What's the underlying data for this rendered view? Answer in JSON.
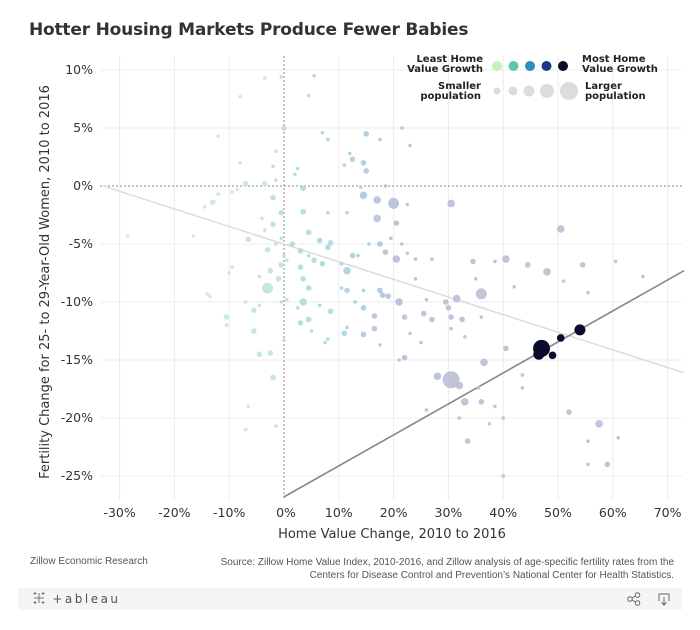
{
  "title": "Hotter Housing Markets Produce Fewer Babies",
  "footer": {
    "left": "Zillow Economic Research",
    "source_line1": "Source: Zillow Home Value Index, 2010-2016, and Zillow analysis of age-specific fertility rates from the",
    "source_line2": "Centers for Disease Control and Prevention’s National Center for Health Statistics."
  },
  "toolbar": {
    "logo": "+ableau",
    "share_icon": "share-icon",
    "download_icon": "download-icon"
  },
  "legend": {
    "color_low_label_1": "Least Home",
    "color_low_label_2": "Value Growth",
    "color_high_label_1": "Most Home",
    "color_high_label_2": "Value Growth",
    "size_low_label_1": "Smaller",
    "size_low_label_2": "population",
    "size_high_label_1": "Larger",
    "size_high_label_2": "population",
    "colors": [
      "#c7f0b4",
      "#5cc9a7",
      "#2c8fbf",
      "#1d3a8a",
      "#0b0b2b"
    ],
    "sizes": [
      1,
      2,
      3,
      4,
      5
    ]
  },
  "chart_data": {
    "type": "scatter",
    "title": "Hotter Housing Markets Produce Fewer Babies",
    "xlabel": "Home Value Change, 2010 to 2016",
    "ylabel": "Fertility Change for 25- to 29-Year-Old Women, 2010 to 2016",
    "xlim": [
      -0.33,
      0.73
    ],
    "ylim": [
      -0.27,
      0.11
    ],
    "x_ticks": [
      -0.3,
      -0.2,
      -0.1,
      0,
      0.1,
      0.2,
      0.3,
      0.4,
      0.5,
      0.6,
      0.7
    ],
    "x_tick_labels": [
      "-30%",
      "-20%",
      "-10%",
      "0%",
      "10%",
      "20%",
      "30%",
      "40%",
      "50%",
      "60%",
      "70%"
    ],
    "y_ticks": [
      0.1,
      0.05,
      0,
      -0.05,
      -0.1,
      -0.15,
      -0.2,
      -0.25
    ],
    "y_tick_labels": [
      "10%",
      "5%",
      "0%",
      "-5%",
      "-10%",
      "-15%",
      "-20%",
      "-25%"
    ],
    "grid": true,
    "legend_position": "top-right",
    "reference_lines": {
      "x": 0,
      "y": 0
    },
    "trend_lines": [
      {
        "name": "all-markets",
        "x": [
          -0.33,
          0.73
        ],
        "y": [
          0.0,
          -0.161
        ],
        "color": "#dddddd"
      },
      {
        "name": "hottest-markets",
        "x": [
          0.0,
          0.73
        ],
        "y": [
          -0.268,
          -0.073
        ],
        "color": "#888888"
      }
    ],
    "points": [
      {
        "x": -0.005,
        "y": 0.094,
        "s": 1,
        "c": 0.35
      },
      {
        "x": 0.055,
        "y": 0.095,
        "s": 1,
        "c": 0.55
      },
      {
        "x": -0.035,
        "y": 0.093,
        "s": 1,
        "c": 0.2
      },
      {
        "x": -0.08,
        "y": 0.077,
        "s": 1,
        "c": 0.15
      },
      {
        "x": 0.045,
        "y": 0.078,
        "s": 1,
        "c": 0.45
      },
      {
        "x": 0.0,
        "y": 0.05,
        "s": 2,
        "c": 0.35
      },
      {
        "x": 0.07,
        "y": 0.046,
        "s": 1,
        "c": 0.55
      },
      {
        "x": 0.08,
        "y": 0.04,
        "s": 1,
        "c": 0.55
      },
      {
        "x": 0.15,
        "y": 0.045,
        "s": 2,
        "c": 0.6
      },
      {
        "x": -0.12,
        "y": 0.043,
        "s": 1,
        "c": 0.15
      },
      {
        "x": 0.175,
        "y": 0.04,
        "s": 1,
        "c": 0.65
      },
      {
        "x": 0.215,
        "y": 0.05,
        "s": 1,
        "c": 0.72
      },
      {
        "x": 0.23,
        "y": 0.035,
        "s": 1,
        "c": 0.72
      },
      {
        "x": -0.015,
        "y": 0.03,
        "s": 1,
        "c": 0.3
      },
      {
        "x": 0.12,
        "y": 0.028,
        "s": 1,
        "c": 0.55
      },
      {
        "x": 0.125,
        "y": 0.023,
        "s": 2,
        "c": 0.55
      },
      {
        "x": 0.11,
        "y": 0.018,
        "s": 1,
        "c": 0.55
      },
      {
        "x": 0.145,
        "y": 0.02,
        "s": 2,
        "c": 0.6
      },
      {
        "x": -0.08,
        "y": 0.02,
        "s": 1,
        "c": 0.2
      },
      {
        "x": -0.02,
        "y": 0.017,
        "s": 1,
        "c": 0.35
      },
      {
        "x": 0.025,
        "y": 0.015,
        "s": 1,
        "c": 0.45
      },
      {
        "x": 0.02,
        "y": 0.01,
        "s": 1,
        "c": 0.45
      },
      {
        "x": 0.15,
        "y": 0.013,
        "s": 2,
        "c": 0.6
      },
      {
        "x": -0.015,
        "y": 0.005,
        "s": 1,
        "c": 0.35
      },
      {
        "x": -0.07,
        "y": 0.002,
        "s": 2,
        "c": 0.2
      },
      {
        "x": -0.035,
        "y": 0.002,
        "s": 2,
        "c": 0.2
      },
      {
        "x": 0.035,
        "y": -0.002,
        "s": 2,
        "c": 0.45
      },
      {
        "x": 0.14,
        "y": -0.001,
        "s": 1,
        "c": 0.6
      },
      {
        "x": 0.185,
        "y": 0.0,
        "s": 1,
        "c": 0.72
      },
      {
        "x": -0.085,
        "y": -0.003,
        "s": 1,
        "c": 0.2
      },
      {
        "x": -0.095,
        "y": -0.005,
        "s": 1,
        "c": 0.2
      },
      {
        "x": -0.12,
        "y": -0.007,
        "s": 1,
        "c": 0.15
      },
      {
        "x": 0.145,
        "y": -0.008,
        "s": 3,
        "c": 0.62
      },
      {
        "x": 0.17,
        "y": -0.012,
        "s": 3,
        "c": 0.72
      },
      {
        "x": 0.2,
        "y": -0.015,
        "s": 4,
        "c": 0.75
      },
      {
        "x": -0.02,
        "y": -0.01,
        "s": 2,
        "c": 0.35
      },
      {
        "x": -0.13,
        "y": -0.014,
        "s": 2,
        "c": 0.15
      },
      {
        "x": -0.145,
        "y": -0.018,
        "s": 1,
        "c": 0.15
      },
      {
        "x": 0.305,
        "y": -0.015,
        "s": 3,
        "c": 0.78
      },
      {
        "x": 0.225,
        "y": -0.016,
        "s": 1,
        "c": 0.78
      },
      {
        "x": 0.08,
        "y": -0.023,
        "s": 1,
        "c": 0.5
      },
      {
        "x": 0.035,
        "y": -0.022,
        "s": 2,
        "c": 0.45
      },
      {
        "x": 0.115,
        "y": -0.023,
        "s": 1,
        "c": 0.55
      },
      {
        "x": 0.17,
        "y": -0.028,
        "s": 3,
        "c": 0.72
      },
      {
        "x": 0.205,
        "y": -0.032,
        "s": 2,
        "c": 0.75
      },
      {
        "x": -0.005,
        "y": -0.023,
        "s": 2,
        "c": 0.35
      },
      {
        "x": -0.04,
        "y": -0.028,
        "s": 1,
        "c": 0.25
      },
      {
        "x": -0.02,
        "y": -0.033,
        "s": 2,
        "c": 0.3
      },
      {
        "x": -0.035,
        "y": -0.038,
        "s": 1,
        "c": 0.25
      },
      {
        "x": 0.195,
        "y": -0.045,
        "s": 1,
        "c": 0.75
      },
      {
        "x": 0.175,
        "y": -0.05,
        "s": 2,
        "c": 0.7
      },
      {
        "x": 0.215,
        "y": -0.05,
        "s": 1,
        "c": 0.75
      },
      {
        "x": 0.225,
        "y": -0.058,
        "s": 1,
        "c": 0.75
      },
      {
        "x": 0.155,
        "y": -0.05,
        "s": 1,
        "c": 0.6
      },
      {
        "x": 0.045,
        "y": -0.04,
        "s": 2,
        "c": 0.45
      },
      {
        "x": 0.065,
        "y": -0.047,
        "s": 2,
        "c": 0.5
      },
      {
        "x": 0.085,
        "y": -0.049,
        "s": 2,
        "c": 0.5
      },
      {
        "x": 0.08,
        "y": -0.053,
        "s": 2,
        "c": 0.5
      },
      {
        "x": 0.03,
        "y": -0.056,
        "s": 2,
        "c": 0.45
      },
      {
        "x": 0.015,
        "y": -0.05,
        "s": 2,
        "c": 0.4
      },
      {
        "x": -0.015,
        "y": -0.05,
        "s": 1,
        "c": 0.3
      },
      {
        "x": -0.03,
        "y": -0.055,
        "s": 2,
        "c": 0.3
      },
      {
        "x": -0.005,
        "y": -0.045,
        "s": 1,
        "c": 0.35
      },
      {
        "x": -0.065,
        "y": -0.046,
        "s": 2,
        "c": 0.25
      },
      {
        "x": 0.185,
        "y": -0.057,
        "s": 2,
        "c": 0.72
      },
      {
        "x": 0.205,
        "y": -0.063,
        "s": 3,
        "c": 0.75
      },
      {
        "x": 0.135,
        "y": -0.06,
        "s": 1,
        "c": 0.6
      },
      {
        "x": 0.045,
        "y": -0.06,
        "s": 1,
        "c": 0.45
      },
      {
        "x": 0.055,
        "y": -0.064,
        "s": 2,
        "c": 0.45
      },
      {
        "x": 0.07,
        "y": -0.067,
        "s": 2,
        "c": 0.5
      },
      {
        "x": 0.005,
        "y": -0.064,
        "s": 1,
        "c": 0.35
      },
      {
        "x": 0.0,
        "y": -0.06,
        "s": 1,
        "c": 0.35
      },
      {
        "x": 0.105,
        "y": -0.067,
        "s": 1,
        "c": 0.55
      },
      {
        "x": 0.125,
        "y": -0.06,
        "s": 2,
        "c": 0.55
      },
      {
        "x": 0.24,
        "y": -0.063,
        "s": 1,
        "c": 0.78
      },
      {
        "x": 0.27,
        "y": -0.063,
        "s": 1,
        "c": 0.78
      },
      {
        "x": 0.24,
        "y": -0.08,
        "s": 1,
        "c": 0.78
      },
      {
        "x": 0.115,
        "y": -0.073,
        "s": 3,
        "c": 0.55
      },
      {
        "x": -0.025,
        "y": -0.073,
        "s": 2,
        "c": 0.3
      },
      {
        "x": -0.095,
        "y": -0.07,
        "s": 1,
        "c": 0.2
      },
      {
        "x": -0.1,
        "y": -0.075,
        "s": 1,
        "c": 0.2
      },
      {
        "x": -0.045,
        "y": -0.078,
        "s": 1,
        "c": 0.25
      },
      {
        "x": -0.005,
        "y": -0.068,
        "s": 2,
        "c": 0.35
      },
      {
        "x": -0.01,
        "y": -0.08,
        "s": 2,
        "c": 0.3
      },
      {
        "x": 0.035,
        "y": -0.08,
        "s": 2,
        "c": 0.45
      },
      {
        "x": 0.03,
        "y": -0.07,
        "s": 2,
        "c": 0.45
      },
      {
        "x": -0.165,
        "y": -0.043,
        "s": 1,
        "c": 0.1
      },
      {
        "x": -0.285,
        "y": -0.043,
        "s": 1,
        "c": 0.05
      },
      {
        "x": -0.03,
        "y": -0.088,
        "s": 4,
        "c": 0.25
      },
      {
        "x": 0.045,
        "y": -0.088,
        "s": 2,
        "c": 0.45
      },
      {
        "x": 0.115,
        "y": -0.09,
        "s": 2,
        "c": 0.55
      },
      {
        "x": 0.145,
        "y": -0.09,
        "s": 1,
        "c": 0.6
      },
      {
        "x": 0.175,
        "y": -0.09,
        "s": 2,
        "c": 0.7
      },
      {
        "x": 0.18,
        "y": -0.094,
        "s": 2,
        "c": 0.7
      },
      {
        "x": 0.105,
        "y": -0.088,
        "s": 1,
        "c": 0.55
      },
      {
        "x": 0.36,
        "y": -0.093,
        "s": 4,
        "c": 0.8
      },
      {
        "x": 0.345,
        "y": -0.065,
        "s": 2,
        "c": 0.8
      },
      {
        "x": 0.385,
        "y": -0.065,
        "s": 1,
        "c": 0.8
      },
      {
        "x": 0.405,
        "y": -0.063,
        "s": 3,
        "c": 0.8
      },
      {
        "x": 0.35,
        "y": -0.08,
        "s": 1,
        "c": 0.8
      },
      {
        "x": 0.36,
        "y": -0.113,
        "s": 1,
        "c": 0.8
      },
      {
        "x": 0.505,
        "y": -0.037,
        "s": 3,
        "c": 0.8
      },
      {
        "x": 0.48,
        "y": -0.074,
        "s": 3,
        "c": 0.8
      },
      {
        "x": 0.445,
        "y": -0.068,
        "s": 2,
        "c": 0.8
      },
      {
        "x": 0.545,
        "y": -0.068,
        "s": 2,
        "c": 0.8
      },
      {
        "x": 0.605,
        "y": -0.065,
        "s": 1,
        "c": 0.8
      },
      {
        "x": 0.655,
        "y": -0.078,
        "s": 1,
        "c": 0.8
      },
      {
        "x": 0.42,
        "y": -0.087,
        "s": 1,
        "c": 0.8
      },
      {
        "x": 0.51,
        "y": -0.082,
        "s": 1,
        "c": 0.8
      },
      {
        "x": 0.555,
        "y": -0.092,
        "s": 1,
        "c": 0.8
      },
      {
        "x": 0.315,
        "y": -0.097,
        "s": 3,
        "c": 0.78
      },
      {
        "x": 0.295,
        "y": -0.1,
        "s": 2,
        "c": 0.78
      },
      {
        "x": 0.3,
        "y": -0.105,
        "s": 2,
        "c": 0.78
      },
      {
        "x": 0.26,
        "y": -0.098,
        "s": 1,
        "c": 0.78
      },
      {
        "x": 0.255,
        "y": -0.11,
        "s": 2,
        "c": 0.78
      },
      {
        "x": 0.27,
        "y": -0.115,
        "s": 2,
        "c": 0.78
      },
      {
        "x": 0.305,
        "y": -0.113,
        "s": 2,
        "c": 0.78
      },
      {
        "x": 0.325,
        "y": -0.115,
        "s": 2,
        "c": 0.78
      },
      {
        "x": 0.33,
        "y": -0.13,
        "s": 1,
        "c": 0.8
      },
      {
        "x": 0.19,
        "y": -0.095,
        "s": 2,
        "c": 0.72
      },
      {
        "x": 0.21,
        "y": -0.1,
        "s": 3,
        "c": 0.75
      },
      {
        "x": 0.22,
        "y": -0.113,
        "s": 2,
        "c": 0.75
      },
      {
        "x": 0.23,
        "y": -0.127,
        "s": 1,
        "c": 0.75
      },
      {
        "x": 0.305,
        "y": -0.123,
        "s": 1,
        "c": 0.8
      },
      {
        "x": 0.25,
        "y": -0.135,
        "s": 1,
        "c": 0.78
      },
      {
        "x": 0.165,
        "y": -0.112,
        "s": 2,
        "c": 0.7
      },
      {
        "x": 0.145,
        "y": -0.105,
        "s": 2,
        "c": 0.6
      },
      {
        "x": 0.13,
        "y": -0.1,
        "s": 1,
        "c": 0.6
      },
      {
        "x": 0.165,
        "y": -0.123,
        "s": 2,
        "c": 0.7
      },
      {
        "x": 0.145,
        "y": -0.128,
        "s": 2,
        "c": 0.65
      },
      {
        "x": 0.115,
        "y": -0.122,
        "s": 1,
        "c": 0.6
      },
      {
        "x": 0.11,
        "y": -0.127,
        "s": 2,
        "c": 0.55
      },
      {
        "x": 0.025,
        "y": -0.105,
        "s": 1,
        "c": 0.45
      },
      {
        "x": 0.03,
        "y": -0.118,
        "s": 2,
        "c": 0.45
      },
      {
        "x": 0.045,
        "y": -0.115,
        "s": 2,
        "c": 0.45
      },
      {
        "x": 0.05,
        "y": -0.125,
        "s": 1,
        "c": 0.45
      },
      {
        "x": 0.085,
        "y": -0.108,
        "s": 2,
        "c": 0.5
      },
      {
        "x": 0.035,
        "y": -0.1,
        "s": 3,
        "c": 0.45
      },
      {
        "x": 0.065,
        "y": -0.103,
        "s": 1,
        "c": 0.5
      },
      {
        "x": -0.005,
        "y": -0.1,
        "s": 1,
        "c": 0.35
      },
      {
        "x": 0.005,
        "y": -0.098,
        "s": 1,
        "c": 0.35
      },
      {
        "x": -0.045,
        "y": -0.103,
        "s": 1,
        "c": 0.25
      },
      {
        "x": -0.055,
        "y": -0.107,
        "s": 2,
        "c": 0.25
      },
      {
        "x": -0.055,
        "y": -0.125,
        "s": 2,
        "c": 0.25
      },
      {
        "x": -0.105,
        "y": -0.113,
        "s": 2,
        "c": 0.2
      },
      {
        "x": -0.105,
        "y": -0.12,
        "s": 1,
        "c": 0.2
      },
      {
        "x": -0.14,
        "y": -0.093,
        "s": 1,
        "c": 0.1
      },
      {
        "x": -0.135,
        "y": -0.095,
        "s": 1,
        "c": 0.1
      },
      {
        "x": -0.07,
        "y": -0.1,
        "s": 1,
        "c": 0.2
      },
      {
        "x": 0.0,
        "y": -0.133,
        "s": 1,
        "c": 0.35
      },
      {
        "x": 0.075,
        "y": -0.135,
        "s": 1,
        "c": 0.5
      },
      {
        "x": 0.08,
        "y": -0.132,
        "s": 1,
        "c": 0.5
      },
      {
        "x": -0.045,
        "y": -0.145,
        "s": 2,
        "c": 0.25
      },
      {
        "x": -0.025,
        "y": -0.144,
        "s": 2,
        "c": 0.3
      },
      {
        "x": -0.02,
        "y": -0.165,
        "s": 2,
        "c": 0.3
      },
      {
        "x": 0.175,
        "y": -0.137,
        "s": 1,
        "c": 0.7
      },
      {
        "x": 0.22,
        "y": -0.148,
        "s": 2,
        "c": 0.75
      },
      {
        "x": 0.21,
        "y": -0.15,
        "s": 1,
        "c": 0.75
      },
      {
        "x": 0.365,
        "y": -0.152,
        "s": 3,
        "c": 0.8
      },
      {
        "x": 0.47,
        "y": -0.14,
        "s": 5,
        "c": 1.0
      },
      {
        "x": 0.465,
        "y": -0.145,
        "s": 4,
        "c": 1.0
      },
      {
        "x": 0.49,
        "y": -0.146,
        "s": 3,
        "c": 1.0
      },
      {
        "x": 0.505,
        "y": -0.131,
        "s": 3,
        "c": 1.0
      },
      {
        "x": 0.54,
        "y": -0.124,
        "s": 4,
        "c": 1.0
      },
      {
        "x": 0.405,
        "y": -0.14,
        "s": 2,
        "c": 0.8
      },
      {
        "x": 0.435,
        "y": -0.163,
        "s": 1,
        "c": 0.8
      },
      {
        "x": 0.28,
        "y": -0.164,
        "s": 3,
        "c": 0.78
      },
      {
        "x": 0.305,
        "y": -0.167,
        "s": 5,
        "c": 0.8
      },
      {
        "x": 0.32,
        "y": -0.172,
        "s": 3,
        "c": 0.8
      },
      {
        "x": 0.33,
        "y": -0.186,
        "s": 3,
        "c": 0.8
      },
      {
        "x": 0.355,
        "y": -0.174,
        "s": 1,
        "c": 0.8
      },
      {
        "x": 0.36,
        "y": -0.186,
        "s": 2,
        "c": 0.8
      },
      {
        "x": 0.32,
        "y": -0.2,
        "s": 1,
        "c": 0.8
      },
      {
        "x": 0.26,
        "y": -0.193,
        "s": 1,
        "c": 0.8
      },
      {
        "x": 0.375,
        "y": -0.205,
        "s": 1,
        "c": 0.8
      },
      {
        "x": 0.385,
        "y": -0.19,
        "s": 1,
        "c": 0.8
      },
      {
        "x": 0.335,
        "y": -0.22,
        "s": 2,
        "c": 0.8
      },
      {
        "x": 0.4,
        "y": -0.25,
        "s": 1,
        "c": 0.8
      },
      {
        "x": 0.435,
        "y": -0.174,
        "s": 1,
        "c": 0.8
      },
      {
        "x": 0.52,
        "y": -0.195,
        "s": 2,
        "c": 0.8
      },
      {
        "x": 0.575,
        "y": -0.205,
        "s": 3,
        "c": 0.8
      },
      {
        "x": 0.555,
        "y": -0.22,
        "s": 1,
        "c": 0.8
      },
      {
        "x": 0.61,
        "y": -0.217,
        "s": 1,
        "c": 0.8
      },
      {
        "x": 0.555,
        "y": -0.24,
        "s": 1,
        "c": 0.8
      },
      {
        "x": 0.59,
        "y": -0.24,
        "s": 2,
        "c": 0.8
      },
      {
        "x": 0.4,
        "y": -0.2,
        "s": 1,
        "c": 0.8
      },
      {
        "x": -0.065,
        "y": -0.19,
        "s": 1,
        "c": 0.15
      },
      {
        "x": -0.07,
        "y": -0.21,
        "s": 1,
        "c": 0.15
      },
      {
        "x": -0.015,
        "y": -0.207,
        "s": 1,
        "c": 0.3
      }
    ]
  }
}
